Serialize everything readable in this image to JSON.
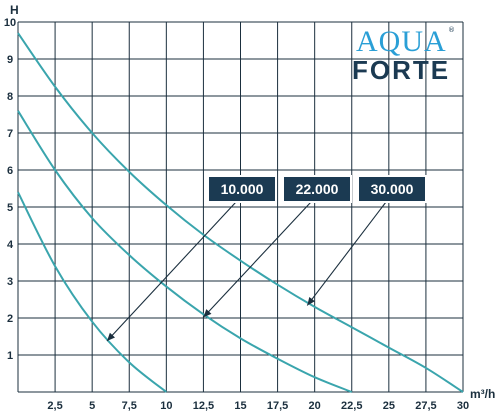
{
  "chart_data": {
    "type": "line",
    "ylabel": "H",
    "xlabel": "m³/h",
    "xlim": [
      0,
      30
    ],
    "ylim": [
      0,
      10
    ],
    "x_ticks": [
      {
        "v": 2.5,
        "t": "2,5"
      },
      {
        "v": 5,
        "t": "5"
      },
      {
        "v": 7.5,
        "t": "7,5"
      },
      {
        "v": 10,
        "t": "10"
      },
      {
        "v": 12.5,
        "t": "12,5"
      },
      {
        "v": 15,
        "t": "15"
      },
      {
        "v": 17.5,
        "t": "17,5"
      },
      {
        "v": 20,
        "t": "20"
      },
      {
        "v": 22.5,
        "t": "22,5"
      },
      {
        "v": 25,
        "t": "25"
      },
      {
        "v": 27.5,
        "t": "27,5"
      },
      {
        "v": 30,
        "t": "30"
      }
    ],
    "y_ticks": [
      {
        "v": 1,
        "t": "1"
      },
      {
        "v": 2,
        "t": "2"
      },
      {
        "v": 3,
        "t": "3"
      },
      {
        "v": 4,
        "t": "4"
      },
      {
        "v": 5,
        "t": "5"
      },
      {
        "v": 6,
        "t": "6"
      },
      {
        "v": 7,
        "t": "7"
      },
      {
        "v": 8,
        "t": "8"
      },
      {
        "v": 9,
        "t": "9"
      },
      {
        "v": 10,
        "t": "10"
      }
    ],
    "grid": true,
    "series": [
      {
        "name": "10.000",
        "x": [
          0,
          2.5,
          5,
          7.5,
          10
        ],
        "y": [
          5.4,
          3.4,
          1.9,
          0.8,
          0
        ]
      },
      {
        "name": "22.000",
        "x": [
          0,
          2.5,
          5,
          7.5,
          10,
          12.5,
          15,
          17.5,
          20,
          22.5
        ],
        "y": [
          7.6,
          6.0,
          4.7,
          3.7,
          2.85,
          2.1,
          1.45,
          0.9,
          0.4,
          0
        ]
      },
      {
        "name": "30.000",
        "x": [
          0,
          2.5,
          5,
          7.5,
          10,
          12.5,
          15,
          17.5,
          20,
          22.5,
          25,
          27.5,
          30
        ],
        "y": [
          9.7,
          8.25,
          7.0,
          5.95,
          5.05,
          4.25,
          3.55,
          2.9,
          2.3,
          1.75,
          1.2,
          0.65,
          0
        ]
      }
    ]
  },
  "logo": {
    "top": "AQUA",
    "bottom": "FORTE",
    "reg": "®"
  },
  "colors": {
    "curve": "#3aa5ad",
    "grid": "#1b2f3e",
    "label_bg": "#1b3a52",
    "logo_blue": "#2a9fd6"
  }
}
